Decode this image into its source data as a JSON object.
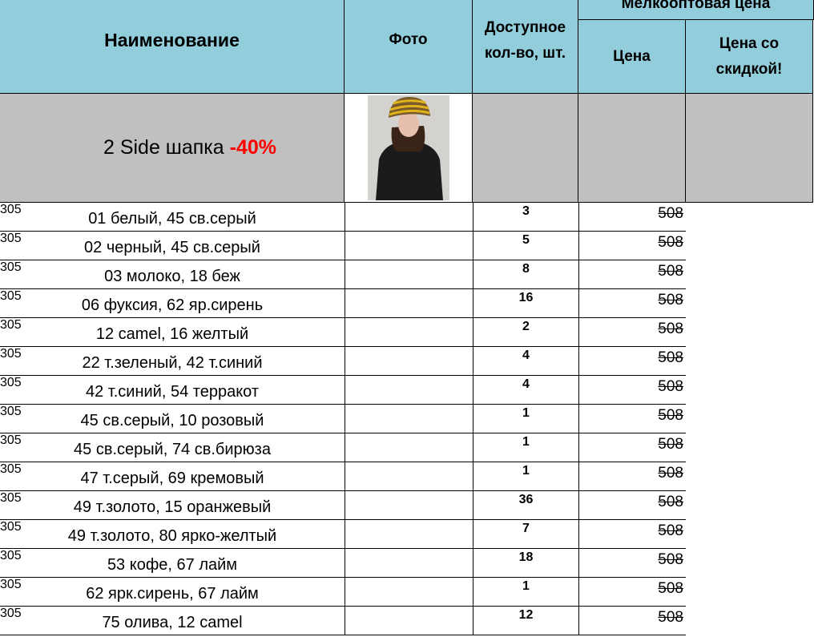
{
  "header": {
    "name": "Наименование",
    "photo": "Фото",
    "qty": "Доступное кол-во, шт.",
    "group": "Мелкооптовая цена",
    "price": "Цена",
    "discount": "Цена со скидкой!"
  },
  "product": {
    "title": "2 Side шапка ",
    "sale": "-40%",
    "photo_icon": "woman-in-striped-hat-photo"
  },
  "colors": {
    "header_bg": "#92cddc",
    "product_bg": "#c0c0c0",
    "discount": "#ff00ff",
    "sale": "#ff0000"
  },
  "rows": [
    {
      "name": "01 белый, 45 св.серый",
      "qty": "3",
      "price": "508",
      "discount": "305"
    },
    {
      "name": "02 черный, 45 св.серый",
      "qty": "5",
      "price": "508",
      "discount": "305"
    },
    {
      "name": "03 молоко, 18 беж",
      "qty": "8",
      "price": "508",
      "discount": "305"
    },
    {
      "name": "06 фуксия, 62 яр.сирень",
      "qty": "16",
      "price": "508",
      "discount": "305"
    },
    {
      "name": "12 camel, 16 желтый",
      "qty": "2",
      "price": "508",
      "discount": "305"
    },
    {
      "name": "22 т.зеленый, 42 т.синий",
      "qty": "4",
      "price": "508",
      "discount": "305"
    },
    {
      "name": "42 т.синий, 54 терракот",
      "qty": "4",
      "price": "508",
      "discount": "305"
    },
    {
      "name": "45 св.серый, 10 розовый",
      "qty": "1",
      "price": "508",
      "discount": "305"
    },
    {
      "name": "45 св.серый, 74 св.бирюза",
      "qty": "1",
      "price": "508",
      "discount": "305"
    },
    {
      "name": "47 т.серый, 69 кремовый",
      "qty": "1",
      "price": "508",
      "discount": "305"
    },
    {
      "name": "49 т.золото, 15 оранжевый",
      "qty": "36",
      "price": "508",
      "discount": "305"
    },
    {
      "name": "49 т.золото, 80 ярко-желтый",
      "qty": "7",
      "price": "508",
      "discount": "305"
    },
    {
      "name": "53 кофе, 67 лайм",
      "qty": "18",
      "price": "508",
      "discount": "305"
    },
    {
      "name": "62 ярк.сирень, 67 лайм",
      "qty": "1",
      "price": "508",
      "discount": "305"
    },
    {
      "name": "75 олива, 12 camel",
      "qty": "12",
      "price": "508",
      "discount": "305"
    }
  ]
}
